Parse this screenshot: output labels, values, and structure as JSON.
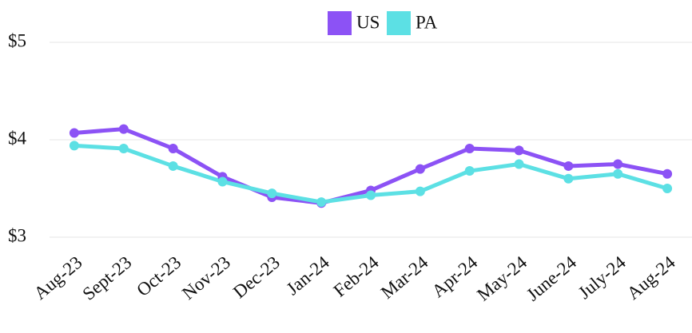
{
  "chart_data": {
    "type": "line",
    "categories": [
      "Aug-23",
      "Sept-23",
      "Oct-23",
      "Nov-23",
      "Dec-23",
      "Jan-24",
      "Feb-24",
      "Mar-24",
      "Apr-24",
      "May-24",
      "June-24",
      "July-24",
      "Aug-24"
    ],
    "series": [
      {
        "name": "US",
        "color": "#8c52f5",
        "values": [
          4.07,
          4.11,
          3.91,
          3.62,
          3.41,
          3.35,
          3.48,
          3.7,
          3.91,
          3.89,
          3.73,
          3.75,
          3.65
        ]
      },
      {
        "name": "PA",
        "color": "#5ce0e4",
        "values": [
          3.94,
          3.91,
          3.73,
          3.57,
          3.45,
          3.36,
          3.43,
          3.47,
          3.68,
          3.75,
          3.6,
          3.65,
          3.5
        ]
      }
    ],
    "ylim": [
      3,
      5
    ],
    "yticks": [
      {
        "value": 3,
        "label": "$3"
      },
      {
        "value": 4,
        "label": "$4"
      },
      {
        "value": 5,
        "label": "$5"
      }
    ],
    "grid": true,
    "legend": "top"
  }
}
